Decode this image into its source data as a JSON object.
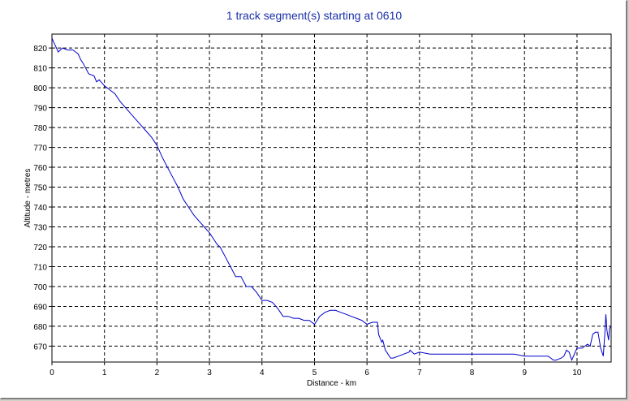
{
  "chart_data": {
    "type": "line",
    "title": "1 track segment(s) starting at 0610",
    "xlabel": "Distance - km",
    "ylabel": "Altitude - metres",
    "xlim": [
      0,
      10.65
    ],
    "ylim": [
      662,
      827
    ],
    "xticks": [
      0,
      1,
      2,
      3,
      4,
      5,
      6,
      7,
      8,
      9,
      10
    ],
    "yticks": [
      670,
      680,
      690,
      700,
      710,
      720,
      730,
      740,
      750,
      760,
      770,
      780,
      790,
      800,
      810,
      820
    ],
    "grid": true,
    "series_color": "#0000cc",
    "series": [
      {
        "x": [
          0,
          0.05,
          0.12,
          0.2,
          0.3,
          0.4,
          0.45,
          0.5,
          0.55,
          0.6,
          0.7,
          0.8,
          0.85,
          0.9,
          1.0,
          1.1,
          1.2,
          1.3,
          1.4,
          1.5,
          1.6,
          1.7,
          1.8,
          1.9,
          2.0,
          2.1,
          2.2,
          2.3,
          2.4,
          2.5,
          2.6,
          2.7,
          2.8,
          2.9,
          3.0,
          3.1,
          3.15,
          3.2,
          3.3,
          3.4,
          3.5,
          3.6,
          3.7,
          3.8,
          3.9,
          4.0,
          4.05,
          4.1,
          4.2,
          4.3,
          4.4,
          4.5,
          4.6,
          4.7,
          4.8,
          4.9,
          5.0,
          5.05,
          5.1,
          5.2,
          5.3,
          5.4,
          5.5,
          5.6,
          5.7,
          5.8,
          5.9,
          6.0,
          6.1,
          6.2,
          6.22,
          6.25,
          6.28,
          6.3,
          6.32,
          6.35,
          6.4,
          6.45,
          6.5,
          6.6,
          6.7,
          6.8,
          6.82,
          6.9,
          7.0,
          7.2,
          7.4,
          7.6,
          7.8,
          8.0,
          8.2,
          8.4,
          8.6,
          8.8,
          9.0,
          9.2,
          9.3,
          9.4,
          9.45,
          9.5,
          9.55,
          9.6,
          9.7,
          9.75,
          9.8,
          9.85,
          9.9,
          10.0,
          10.1,
          10.15,
          10.2,
          10.25,
          10.3,
          10.35,
          10.4,
          10.45,
          10.5,
          10.53,
          10.55,
          10.57,
          10.6,
          10.62,
          10.65
        ],
        "y": [
          825,
          822,
          818,
          820,
          819,
          819,
          818,
          817,
          814,
          812,
          807,
          806,
          803,
          804,
          801,
          799,
          797,
          793,
          790,
          787,
          784,
          781,
          778,
          775,
          771,
          765,
          760,
          755,
          750,
          744,
          740,
          736,
          733,
          730,
          727,
          723,
          721,
          720,
          715,
          710,
          705,
          705,
          700,
          700,
          697,
          693,
          693,
          693,
          692,
          689,
          685,
          685,
          684,
          684,
          683,
          683,
          681,
          683,
          685,
          687,
          688,
          688,
          687,
          686,
          685,
          684,
          683,
          681,
          682,
          682,
          676,
          674,
          672,
          673,
          671,
          668,
          666,
          664,
          664,
          665,
          666,
          667,
          668,
          666,
          667,
          666,
          666,
          666,
          666,
          666,
          666,
          666,
          666,
          666,
          665,
          665,
          665,
          665,
          665,
          664,
          663,
          663,
          664,
          665,
          668,
          667,
          663,
          669,
          669,
          670,
          671,
          670,
          676,
          677,
          677,
          669,
          665,
          676,
          686,
          678,
          673,
          679,
          680
        ]
      }
    ]
  }
}
